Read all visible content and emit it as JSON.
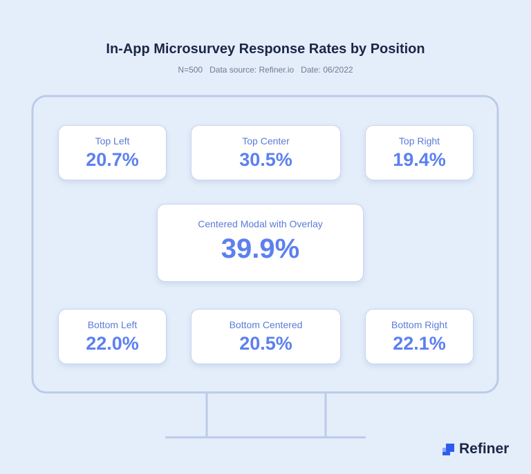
{
  "header": {
    "title": "In-App Microsurvey Response Rates by Position",
    "subtitle": [
      "N=500",
      "Data source: Refiner.io",
      "Date: 06/2022"
    ]
  },
  "positions": [
    {
      "label": "Top Left",
      "value": "20.7%"
    },
    {
      "label": "Top Center",
      "value": "30.5%"
    },
    {
      "label": "Top Right",
      "value": "19.4%"
    },
    {
      "label": "Centered Modal with Overlay",
      "value": "39.9%"
    },
    {
      "label": "Bottom Left",
      "value": "22.0%"
    },
    {
      "label": "Bottom Centered",
      "value": "20.5%"
    },
    {
      "label": "Bottom Right",
      "value": "22.1%"
    }
  ],
  "brand": "Refiner"
}
